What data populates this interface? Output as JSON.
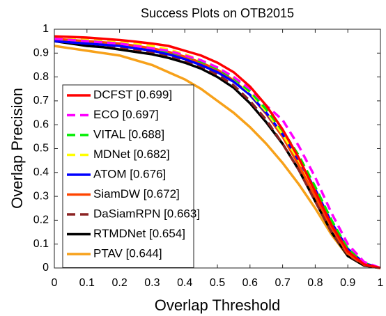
{
  "chart_data": {
    "type": "line",
    "title": "Success Plots on OTB2015",
    "xlabel": "Overlap Threshold",
    "ylabel": "Overlap Precision",
    "x": [
      0,
      0.05,
      0.1,
      0.15,
      0.2,
      0.25,
      0.3,
      0.35,
      0.4,
      0.45,
      0.5,
      0.55,
      0.6,
      0.65,
      0.7,
      0.75,
      0.8,
      0.85,
      0.9,
      0.95,
      1
    ],
    "xlim": [
      0,
      1
    ],
    "ylim": [
      0,
      1
    ],
    "xticks": [
      0,
      0.1,
      0.2,
      0.3,
      0.4,
      0.5,
      0.6,
      0.7,
      0.8,
      0.9,
      1
    ],
    "yticks": [
      0,
      0.1,
      0.2,
      0.3,
      0.4,
      0.5,
      0.6,
      0.7,
      0.8,
      0.9,
      1
    ],
    "grid": false,
    "legend": "lower-left",
    "series": [
      {
        "name": "DCFST [0.699]",
        "color": "#ff0000",
        "dashed": false,
        "values": [
          0.97,
          0.968,
          0.965,
          0.96,
          0.955,
          0.948,
          0.94,
          0.93,
          0.91,
          0.89,
          0.86,
          0.82,
          0.76,
          0.68,
          0.58,
          0.46,
          0.32,
          0.18,
          0.07,
          0.015,
          0
        ]
      },
      {
        "name": "ECO [0.697]",
        "color": "#ff00ff",
        "dashed": true,
        "values": [
          0.96,
          0.955,
          0.95,
          0.945,
          0.94,
          0.93,
          0.92,
          0.91,
          0.89,
          0.87,
          0.84,
          0.8,
          0.75,
          0.68,
          0.62,
          0.51,
          0.38,
          0.23,
          0.1,
          0.025,
          0
        ]
      },
      {
        "name": "VITAL [0.688]",
        "color": "#00ee00",
        "dashed": true,
        "values": [
          0.96,
          0.955,
          0.95,
          0.945,
          0.94,
          0.93,
          0.92,
          0.905,
          0.89,
          0.865,
          0.835,
          0.795,
          0.74,
          0.665,
          0.575,
          0.47,
          0.34,
          0.2,
          0.08,
          0.02,
          0
        ]
      },
      {
        "name": "MDNet [0.682]",
        "color": "#ffff00",
        "dashed": true,
        "values": [
          0.97,
          0.965,
          0.96,
          0.955,
          0.95,
          0.94,
          0.93,
          0.915,
          0.895,
          0.87,
          0.84,
          0.795,
          0.735,
          0.655,
          0.56,
          0.45,
          0.32,
          0.18,
          0.07,
          0.015,
          0
        ]
      },
      {
        "name": "ATOM [0.676]",
        "color": "#0000ff",
        "dashed": false,
        "values": [
          0.95,
          0.945,
          0.94,
          0.935,
          0.93,
          0.92,
          0.91,
          0.895,
          0.875,
          0.85,
          0.82,
          0.78,
          0.725,
          0.65,
          0.56,
          0.45,
          0.33,
          0.19,
          0.08,
          0.02,
          0
        ]
      },
      {
        "name": "SiamDW [0.672]",
        "color": "#ff4500",
        "dashed": false,
        "values": [
          0.96,
          0.955,
          0.95,
          0.945,
          0.94,
          0.93,
          0.92,
          0.905,
          0.885,
          0.86,
          0.83,
          0.785,
          0.725,
          0.645,
          0.55,
          0.43,
          0.3,
          0.17,
          0.06,
          0.015,
          0
        ]
      },
      {
        "name": "DaSiamRPN [0.663]",
        "color": "#8b2323",
        "dashed": true,
        "values": [
          0.95,
          0.945,
          0.94,
          0.935,
          0.925,
          0.915,
          0.905,
          0.89,
          0.87,
          0.845,
          0.81,
          0.765,
          0.7,
          0.62,
          0.52,
          0.41,
          0.28,
          0.15,
          0.055,
          0.012,
          0
        ]
      },
      {
        "name": "RTMDNet [0.654]",
        "color": "#000000",
        "dashed": false,
        "values": [
          0.95,
          0.94,
          0.93,
          0.925,
          0.915,
          0.905,
          0.895,
          0.88,
          0.86,
          0.835,
          0.8,
          0.755,
          0.69,
          0.61,
          0.52,
          0.41,
          0.28,
          0.15,
          0.05,
          0.01,
          0
        ]
      },
      {
        "name": "PTAV [0.644]",
        "color": "#f7a11a",
        "dashed": false,
        "values": [
          0.93,
          0.92,
          0.91,
          0.9,
          0.89,
          0.87,
          0.85,
          0.82,
          0.79,
          0.75,
          0.7,
          0.65,
          0.59,
          0.52,
          0.44,
          0.35,
          0.25,
          0.14,
          0.05,
          0.01,
          0
        ]
      }
    ]
  }
}
